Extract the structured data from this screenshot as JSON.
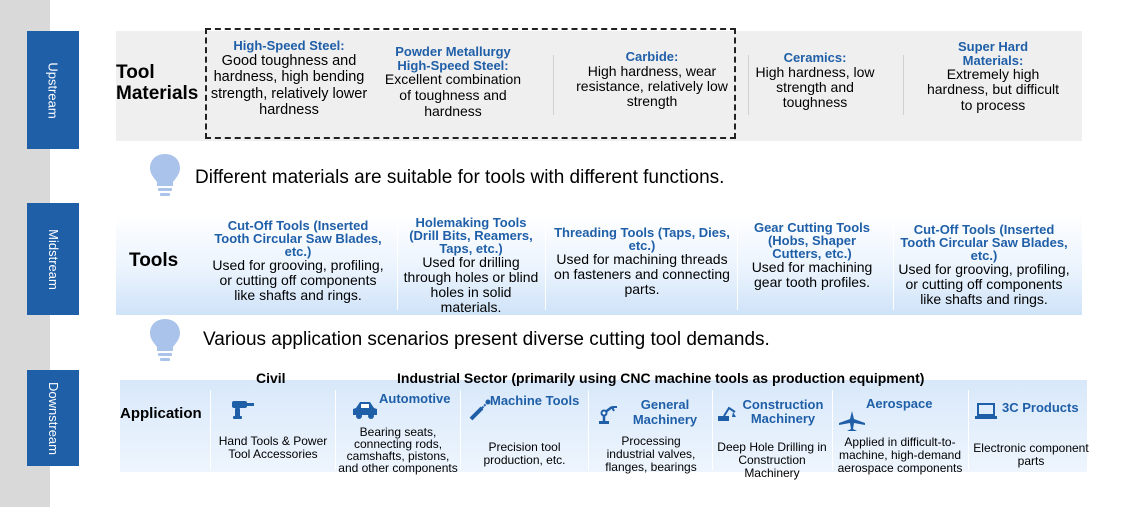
{
  "stages": {
    "upstream": "Upstream",
    "midstream": "Midstream",
    "downstream": "Downstream"
  },
  "upstream": {
    "label": "Tool\nMaterials",
    "materials": [
      {
        "title": "High-Speed Steel:",
        "desc": "Good toughness and hardness, high bending strength, relatively lower hardness"
      },
      {
        "title": "Powder Metallurgy High-Speed Steel:",
        "desc": "Excellent combination of toughness and hardness"
      },
      {
        "title": "Carbide:",
        "desc": "High hardness, wear resistance, relatively low strength"
      },
      {
        "title": "Ceramics:",
        "desc": "High hardness, low strength and toughness"
      },
      {
        "title": "Super Hard Materials:",
        "desc": "Extremely high hardness, but difficult to process"
      }
    ]
  },
  "notes": {
    "first": "Different materials are suitable for tools with different functions.",
    "second": "Various application scenarios present diverse cutting tool demands."
  },
  "midstream": {
    "label": "Tools",
    "tools": [
      {
        "title": "Cut-Off Tools (Inserted Tooth Circular Saw Blades, etc.)",
        "desc": "Used for grooving, profiling, or cutting off components like shafts and rings."
      },
      {
        "title": "Holemaking Tools (Drill Bits, Reamers, Taps, etc.)",
        "desc": "Used for drilling through holes or blind holes in solid materials."
      },
      {
        "title": "Threading Tools (Taps, Dies, etc.)",
        "desc": "Used for machining threads on fasteners and connecting parts."
      },
      {
        "title": "Gear Cutting Tools (Hobs, Shaper Cutters, etc.)",
        "desc": "Used for machining gear tooth profiles."
      },
      {
        "title": "Cut-Off Tools (Inserted Tooth Circular Saw Blades, etc.)",
        "desc": "Used for grooving, profiling, or cutting off components like shafts and rings."
      }
    ]
  },
  "downstream": {
    "label": "Application",
    "civil_header": "Civil",
    "industrial_header": "Industrial Sector (primarily using CNC machine tools as production equipment)",
    "applications": [
      {
        "title": "",
        "desc": "Hand Tools & Power Tool Accessories",
        "icon": "power-drill-icon"
      },
      {
        "title": "Automotive",
        "desc": "Bearing seats, connecting rods, camshafts, pistons, and other components",
        "icon": "car-icon"
      },
      {
        "title": "Machine Tools",
        "desc": "Precision tool production, etc.",
        "icon": "milling-tool-icon"
      },
      {
        "title": "General Machinery",
        "desc": "Processing industrial valves, flanges, bearings",
        "icon": "robot-arm-icon"
      },
      {
        "title": "Construction Machinery",
        "desc": "Deep Hole Drilling in Construction Machinery",
        "icon": "excavator-icon"
      },
      {
        "title": "Aerospace",
        "desc": "Applied in difficult-to-machine, high-demand aerospace components",
        "icon": "airplane-icon"
      },
      {
        "title": "3C Products",
        "desc": "Electronic component parts",
        "icon": "laptop-icon"
      }
    ]
  },
  "colors": {
    "accent": "#1f5fa8",
    "sidebar": "#d9d9d9",
    "upstream_band": "#efefef",
    "bulb": "#a9c3ea"
  }
}
